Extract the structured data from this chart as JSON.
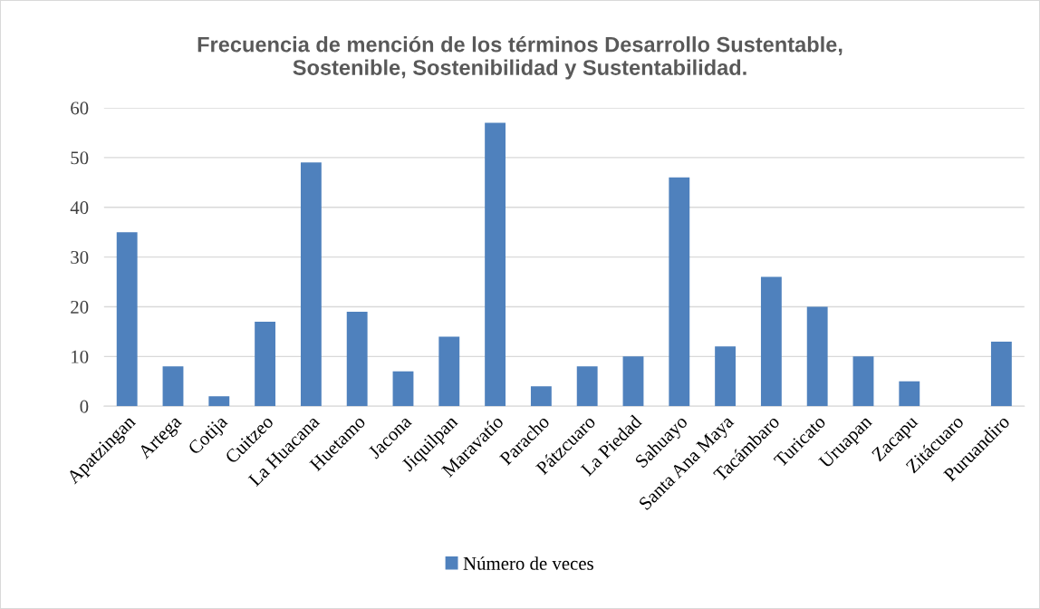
{
  "chart_data": {
    "type": "bar",
    "title": "Frecuencia de mención de los términos Desarrollo Sustentable,\nSostenible, Sostenibilidad y Sustentabilidad.",
    "categories": [
      "Apatzingan",
      "Artega",
      "Cotija",
      "Cuitzeo",
      "La Huacana",
      "Huetamo",
      "Jacona",
      "Jiquilpan",
      "Maravatío",
      "Paracho",
      "Pátzcuaro",
      "La Piedad",
      "Sahuayo",
      "Santa Ana Maya",
      "Tacámbaro",
      "Turicato",
      "Uruapan",
      "Zacapu",
      "Zitácuaro",
      "Puruandiro"
    ],
    "series": [
      {
        "name": "Número de veces",
        "color": "#4f81bd",
        "values": [
          35,
          8,
          2,
          17,
          49,
          19,
          7,
          14,
          57,
          4,
          8,
          10,
          46,
          12,
          26,
          20,
          10,
          5,
          0,
          13
        ]
      }
    ],
    "ylim": [
      0,
      60
    ],
    "yticks": [
      0,
      10,
      20,
      30,
      40,
      50,
      60
    ],
    "grid": "y",
    "legend": "bottom"
  }
}
